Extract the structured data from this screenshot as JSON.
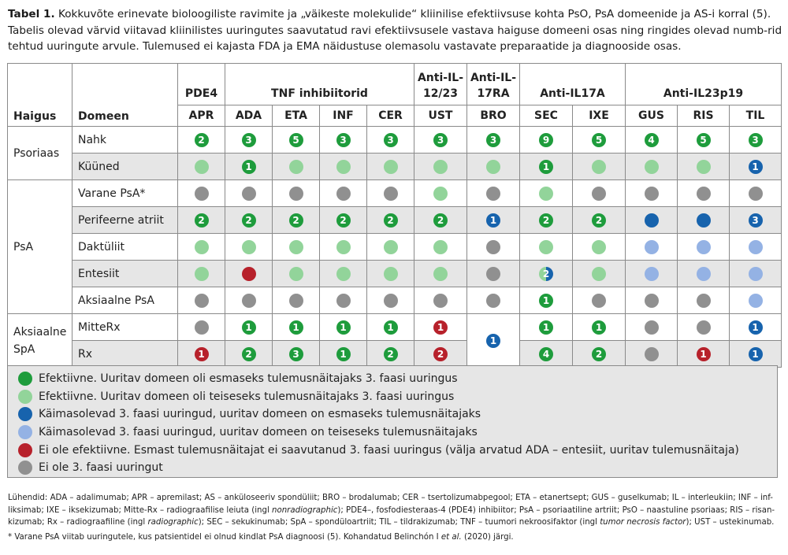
{
  "caption": {
    "label": "Tabel 1.",
    "text": " Kokkuvõte erinevate bioloogiliste  ravimite ja „väikeste molekulide“ kliinilise efektiivsuse kohta PsO, PsA domeenide ja AS-i korral (5). Tabelis olevad värvid viitavad kliinilistes uuringutes saavutatud ravi efektiivsusele vastava haiguse domeeni osas ning ringides olevad numb-rid tehtud uuringute arvule. Tulemused ei kajasta FDA ja EMA näidustuse olemasolu vastavate preparaatide ja diagnooside osas."
  },
  "header": {
    "col_disease": "Haigus",
    "col_domain": "Domeen",
    "groups": [
      "PDE4",
      "TNF inhibiitorid",
      "Anti-IL-12/23",
      "Anti-IL-17RA",
      "Anti-IL17A",
      "Anti-IL23p19"
    ],
    "drugs": [
      "APR",
      "ADA",
      "ETA",
      "INF",
      "CER",
      "UST",
      "BRO",
      "SEC",
      "IXE",
      "GUS",
      "RIS",
      "TIL"
    ]
  },
  "diseases": [
    "Psoriaas",
    "PsA",
    "Aksiaalne SpA"
  ],
  "rows": [
    {
      "domain": "Nahk",
      "cells": [
        [
          "dg",
          "2"
        ],
        [
          "dg",
          "3"
        ],
        [
          "dg",
          "5"
        ],
        [
          "dg",
          "3"
        ],
        [
          "dg",
          "3"
        ],
        [
          "dg",
          "3"
        ],
        [
          "dg",
          "3"
        ],
        [
          "dg",
          "9"
        ],
        [
          "dg",
          "5"
        ],
        [
          "dg",
          "4"
        ],
        [
          "dg",
          "5"
        ],
        [
          "dg",
          "3"
        ]
      ]
    },
    {
      "domain": "Küüned",
      "cells": [
        [
          "lg",
          ""
        ],
        [
          "dg",
          "1"
        ],
        [
          "lg",
          ""
        ],
        [
          "lg",
          ""
        ],
        [
          "lg",
          ""
        ],
        [
          "lg",
          ""
        ],
        [
          "lg",
          ""
        ],
        [
          "dg",
          "1"
        ],
        [
          "lg",
          ""
        ],
        [
          "lg",
          ""
        ],
        [
          "lg",
          ""
        ],
        [
          "db",
          "1"
        ]
      ]
    },
    {
      "domain": "Varane PsA*",
      "cells": [
        [
          "gy",
          ""
        ],
        [
          "gy",
          ""
        ],
        [
          "gy",
          ""
        ],
        [
          "gy",
          ""
        ],
        [
          "gy",
          ""
        ],
        [
          "lg",
          ""
        ],
        [
          "gy",
          ""
        ],
        [
          "lg",
          ""
        ],
        [
          "gy",
          ""
        ],
        [
          "gy",
          ""
        ],
        [
          "gy",
          ""
        ],
        [
          "gy",
          ""
        ]
      ]
    },
    {
      "domain": "Perifeerne atriit",
      "cells": [
        [
          "dg",
          "2"
        ],
        [
          "dg",
          "2"
        ],
        [
          "dg",
          "2"
        ],
        [
          "dg",
          "2"
        ],
        [
          "dg",
          "2"
        ],
        [
          "dg",
          "2"
        ],
        [
          "db",
          "1"
        ],
        [
          "dg",
          "2"
        ],
        [
          "dg",
          "2"
        ],
        [
          "db",
          ""
        ],
        [
          "db",
          ""
        ],
        [
          "db",
          "3"
        ]
      ]
    },
    {
      "domain": "Daktüliit",
      "cells": [
        [
          "lg",
          ""
        ],
        [
          "lg",
          ""
        ],
        [
          "lg",
          ""
        ],
        [
          "lg",
          ""
        ],
        [
          "lg",
          ""
        ],
        [
          "lg",
          ""
        ],
        [
          "gy",
          ""
        ],
        [
          "lg",
          ""
        ],
        [
          "lg",
          ""
        ],
        [
          "lb",
          ""
        ],
        [
          "lb",
          ""
        ],
        [
          "lb",
          ""
        ]
      ]
    },
    {
      "domain": "Entesiit",
      "cells": [
        [
          "lg",
          ""
        ],
        [
          "rd",
          ""
        ],
        [
          "lg",
          ""
        ],
        [
          "lg",
          ""
        ],
        [
          "lg",
          ""
        ],
        [
          "lg",
          ""
        ],
        [
          "gy",
          ""
        ],
        [
          "half",
          "2"
        ],
        [
          "lg",
          ""
        ],
        [
          "lb",
          ""
        ],
        [
          "lb",
          ""
        ],
        [
          "lb",
          ""
        ]
      ]
    },
    {
      "domain": "Aksiaalne PsA",
      "cells": [
        [
          "gy",
          ""
        ],
        [
          "gy",
          ""
        ],
        [
          "gy",
          ""
        ],
        [
          "gy",
          ""
        ],
        [
          "gy",
          ""
        ],
        [
          "gy",
          ""
        ],
        [
          "gy",
          ""
        ],
        [
          "dg",
          "1"
        ],
        [
          "gy",
          ""
        ],
        [
          "gy",
          ""
        ],
        [
          "gy",
          ""
        ],
        [
          "lb",
          ""
        ]
      ]
    },
    {
      "domain": "MitteRx",
      "cells": [
        [
          "gy",
          ""
        ],
        [
          "dg",
          "1"
        ],
        [
          "dg",
          "1"
        ],
        [
          "dg",
          "1"
        ],
        [
          "dg",
          "1"
        ],
        [
          "rd",
          "1"
        ],
        [
          "db",
          "1"
        ],
        [
          "dg",
          "1"
        ],
        [
          "dg",
          "1"
        ],
        [
          "gy",
          ""
        ],
        [
          "gy",
          ""
        ],
        [
          "db",
          "1"
        ]
      ]
    },
    {
      "domain": "Rx",
      "cells": [
        [
          "rd",
          "1"
        ],
        [
          "dg",
          "2"
        ],
        [
          "dg",
          "3"
        ],
        [
          "dg",
          "1"
        ],
        [
          "dg",
          "2"
        ],
        [
          "rd",
          "2"
        ],
        null,
        [
          "dg",
          "4"
        ],
        [
          "dg",
          "2"
        ],
        [
          "gy",
          ""
        ],
        [
          "rd",
          "1"
        ],
        [
          "db",
          "1"
        ]
      ]
    }
  ],
  "legend": [
    {
      "color": "dg",
      "text": "Efektiivne. Uuritav domeen oli esmaseks tulemusnäitajaks 3. faasi uuringus"
    },
    {
      "color": "lg",
      "text": "Efektiivne. Uuritav domeen oli teiseseks tulemusnäitajaks 3. faasi uuringus"
    },
    {
      "color": "db",
      "text": "Käimasolevad 3. faasi uuringud, uuritav domeen on esmaseks tulemusnäitajaks"
    },
    {
      "color": "lb",
      "text": "Käimasolevad 3. faasi uuringud, uuritav domeen on teiseseks tulemusnäitajaks"
    },
    {
      "color": "rd",
      "text": "Ei ole efektiivne. Esmast tulemusnäitajat ei saavutanud 3. faasi uuringus (välja arvatud ADA – entesiit, uuritav tulemusnäitaja)"
    },
    {
      "color": "gy",
      "text": "Ei ole 3. faasi uuringut"
    }
  ],
  "colors": {
    "dg": "#1e9c3c",
    "lg": "#92d49a",
    "db": "#1763ad",
    "lb": "#94b2e4",
    "rd": "#b7212b",
    "gy": "#909090"
  },
  "footnotes": {
    "abbrev_1": "Lühendid: ADA – adalimumab; APR – apremilast; AS – anküloseeriv spondüliit; BRO – brodalumab; CER – tsertolizumabpegool; ETA – etanertsept; GUS – guselkumab; IL – interleukiin; INF – inf-liksimab; IXE – iksekizumab; Mitte-Rx – radiograafilise leiuta (ingl ",
    "abbrev_em1": "nonradiographic",
    "abbrev_2": "); PDE4–, fosfodiesteraas-4 (PDE4) inhibiitor; PsA – psoriaatiline artriit; PsO – naastuline psoriaas; RIS – risan-kizumab; Rx – radiograafiline (ingl ",
    "abbrev_em2": "radiographic",
    "abbrev_3": "); SEC – sekukinumab; SpA – spondüloartriit; TIL – tildrakizumab; TNF – tuumori nekroosifaktor (ingl ",
    "abbrev_em3": "tumor necrosis factor",
    "abbrev_4": "); UST – ustekinumab.",
    "note_1": "* Varane PsA viitab uuringutele, kus patsientidel ei olnud kindlat PsA diagnoosi (5). Kohandatud Belinchón I ",
    "note_em": "et al.",
    "note_2": " (2020) järgi."
  }
}
